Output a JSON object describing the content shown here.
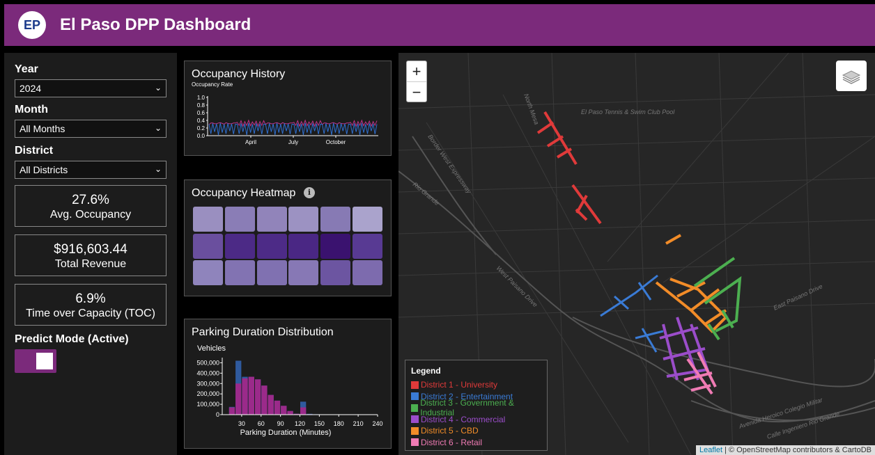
{
  "header": {
    "logo": "EP",
    "title": "El Paso DPP Dashboard"
  },
  "filters": {
    "year_label": "Year",
    "year_value": "2024",
    "month_label": "Month",
    "month_value": "All Months",
    "district_label": "District",
    "district_value": "All Districts"
  },
  "kpis": [
    {
      "value": "27.6%",
      "label": "Avg. Occupancy"
    },
    {
      "value": "$916,603.44",
      "label": "Total Revenue"
    },
    {
      "value": "6.9%",
      "label": "Time over Capacity (TOC)"
    }
  ],
  "predict": {
    "label": "Predict Mode (Active)",
    "on": true
  },
  "occupancy_history": {
    "title": "Occupancy History",
    "ylabel": "Occupancy Rate",
    "yticks": [
      "1.0",
      "0.8",
      "0.6",
      "0.4",
      "0.2",
      "0.0"
    ],
    "xticks": [
      "April",
      "July",
      "October"
    ]
  },
  "heatmap": {
    "title": "Occupancy Heatmap",
    "info_icon": "info-icon",
    "rows": [
      [
        "#9a8fc0",
        "#8a7db6",
        "#9184ba",
        "#9c92c2",
        "#877ab4",
        "#aaa3cc"
      ],
      [
        "#6a4f9e",
        "#4c2a86",
        "#4d2b87",
        "#4a2784",
        "#3a126f",
        "#583a93"
      ],
      [
        "#8f84bc",
        "#8273b2",
        "#8071b1",
        "#8778b5",
        "#6c55a1",
        "#7d6bae"
      ]
    ]
  },
  "duration": {
    "title": "Parking Duration Distribution",
    "ylabel": "Vehicles",
    "xlabel": "Parking Duration (Minutes)",
    "yticks": [
      "500,000",
      "400,000",
      "300,000",
      "200,000",
      "100,000",
      "0"
    ],
    "xticks": [
      "30",
      "60",
      "90",
      "120",
      "150",
      "180",
      "210",
      "240"
    ]
  },
  "chart_data": [
    {
      "type": "line",
      "title": "Occupancy History",
      "ylabel": "Occupancy Rate",
      "ylim": [
        0,
        1
      ],
      "x_ticks": [
        "April",
        "July",
        "October"
      ],
      "series": [
        {
          "values": [
            0.32,
            0.3,
            0.36,
            0.28,
            0.34,
            0.3,
            0.37,
            0.29,
            0.33,
            0.31,
            0.35,
            0.28,
            0.34,
            0.3,
            0.36
          ]
        },
        {
          "values": [
            0.3,
            0.05,
            0.32,
            0.1,
            0.31,
            0.02,
            0.33,
            0.08,
            0.3,
            0.05,
            0.32,
            0.12,
            0.31,
            0.04,
            0.3
          ]
        }
      ]
    },
    {
      "type": "bar",
      "title": "Parking Duration Distribution",
      "xlabel": "Parking Duration (Minutes)",
      "ylabel": "Vehicles",
      "ylim": [
        0,
        550000
      ],
      "xlim": [
        0,
        240
      ],
      "bin_width": 10,
      "bin_starts": [
        10,
        20,
        30,
        40,
        50,
        60,
        70,
        80,
        90,
        100,
        110,
        120,
        130,
        140,
        150,
        160,
        170,
        180,
        190
      ],
      "series": [
        {
          "values": [
            70000,
            300000,
            350000,
            365000,
            340000,
            280000,
            190000,
            135000,
            85000,
            35000,
            8000,
            70000,
            4000,
            2000,
            1000,
            1000,
            1000,
            500,
            500
          ],
          "color": "#9b2a8a"
        },
        {
          "values": [
            75000,
            520000,
            365000,
            365000,
            340000,
            280000,
            190000,
            135000,
            85000,
            35000,
            8000,
            125000,
            8000,
            4000,
            3000,
            2000,
            2000,
            1500,
            1500
          ],
          "color": "#2f5a9e"
        }
      ]
    }
  ],
  "map": {
    "zoom_in": "+",
    "zoom_out": "−",
    "labels": [
      "El Paso Tennis & Swim Club Pool",
      "North Mesa",
      "Border West Expressway",
      "Rio Grande",
      "West Paisano Drive",
      "East Paisano Drive",
      "Avenida Heroico Colegio Militar",
      "Calle Ingeniero Rio Grande"
    ],
    "legend_title": "Legend",
    "legend": [
      {
        "label": "District 1 - University",
        "color": "#e03a3a"
      },
      {
        "label": "District 2 - Entertainment",
        "color": "#3a7bd5"
      },
      {
        "label": "District 3 - Government & Industrial",
        "color": "#4caf50"
      },
      {
        "label": "District 4 - Commercial",
        "color": "#9b4dca"
      },
      {
        "label": "District 5 - CBD",
        "color": "#f28c28"
      },
      {
        "label": "District 6 - Retail",
        "color": "#f07bb4"
      }
    ],
    "attribution_leaflet": "Leaflet",
    "attribution_rest": " | © OpenStreetMap contributors & CartoDB"
  }
}
